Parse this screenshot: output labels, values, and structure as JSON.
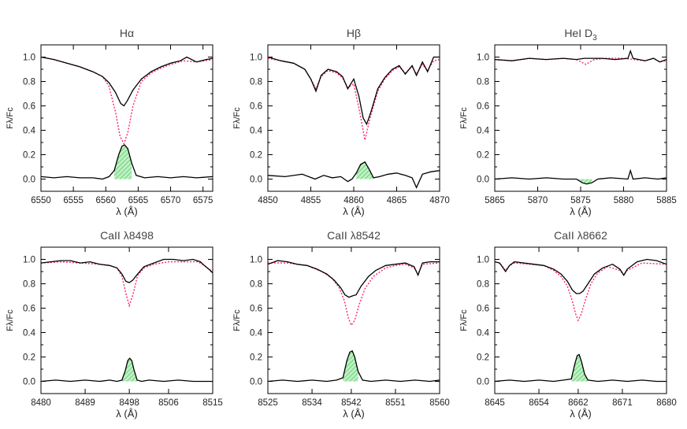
{
  "chart_data": [
    {
      "type": "line",
      "title": "Hα",
      "xlabel": "λ (Å)",
      "ylabel": "Fλ/Fc",
      "xlim": [
        6550,
        6576.5
      ],
      "ylim": [
        -0.1,
        1.1
      ],
      "xticks": [
        6550,
        6555,
        6560,
        6565,
        6570,
        6575
      ],
      "yticks": [
        0.0,
        0.2,
        0.4,
        0.6,
        0.8,
        1.0
      ],
      "line_center": 6562.8,
      "series": [
        {
          "role": "observed",
          "x": [
            6550,
            6552,
            6554,
            6556,
            6558,
            6559.5,
            6560.5,
            6561.5,
            6562.3,
            6562.8,
            6563.3,
            6564.2,
            6565.5,
            6567,
            6568.5,
            6570,
            6571.5,
            6572.5,
            6574,
            6575.5,
            6576.5
          ],
          "y": [
            1.0,
            0.98,
            0.95,
            0.92,
            0.88,
            0.84,
            0.79,
            0.71,
            0.62,
            0.6,
            0.64,
            0.73,
            0.82,
            0.88,
            0.92,
            0.95,
            0.97,
            1.0,
            0.96,
            0.98,
            0.99
          ]
        },
        {
          "role": "synthetic",
          "x": [
            6550,
            6552,
            6554,
            6556,
            6558,
            6559.5,
            6560.5,
            6561.5,
            6562.2,
            6562.8,
            6563.4,
            6564.2,
            6565.5,
            6567,
            6568.5,
            6570,
            6572,
            6574,
            6576.5
          ],
          "y": [
            1.0,
            0.98,
            0.95,
            0.92,
            0.88,
            0.84,
            0.76,
            0.55,
            0.35,
            0.29,
            0.38,
            0.6,
            0.8,
            0.87,
            0.91,
            0.94,
            0.97,
            0.96,
            0.98
          ]
        },
        {
          "role": "subtracted",
          "x": [
            6550,
            6552,
            6554,
            6556,
            6558,
            6559.5,
            6560.5,
            6561.3,
            6562.0,
            6562.5,
            6562.9,
            6563.4,
            6564.0,
            6564.7,
            6566,
            6568,
            6570,
            6572,
            6574,
            6576.5
          ],
          "y": [
            0.02,
            0.01,
            0.02,
            0.01,
            0.01,
            0.0,
            0.02,
            0.07,
            0.2,
            0.27,
            0.28,
            0.25,
            0.13,
            0.03,
            0.01,
            0.02,
            0.01,
            0.02,
            0.01,
            0.02
          ]
        }
      ]
    },
    {
      "type": "line",
      "title": "Hβ",
      "xlabel": "λ (Å)",
      "ylabel": "Fλ/Fc",
      "xlim": [
        4850,
        4870
      ],
      "ylim": [
        -0.1,
        1.1
      ],
      "xticks": [
        4850,
        4855,
        4860,
        4865,
        4870
      ],
      "yticks": [
        0.0,
        0.2,
        0.4,
        0.6,
        0.8,
        1.0
      ],
      "line_center": 4861.3,
      "series": [
        {
          "role": "observed",
          "x": [
            4850,
            4851.5,
            4853,
            4854.3,
            4855,
            4855.6,
            4856.2,
            4857,
            4858,
            4858.7,
            4859.3,
            4860,
            4860.6,
            4861.1,
            4861.5,
            4862,
            4862.8,
            4863.6,
            4864.5,
            4865.3,
            4866,
            4866.8,
            4867.3,
            4868,
            4868.6,
            4869.3,
            4870
          ],
          "y": [
            1.0,
            0.97,
            0.95,
            0.9,
            0.82,
            0.72,
            0.85,
            0.9,
            0.88,
            0.84,
            0.74,
            0.82,
            0.68,
            0.5,
            0.45,
            0.55,
            0.74,
            0.83,
            0.9,
            0.93,
            0.86,
            0.93,
            0.85,
            0.96,
            0.88,
            1.0,
            1.0
          ]
        },
        {
          "role": "synthetic",
          "x": [
            4850,
            4851.5,
            4853,
            4854.3,
            4855,
            4855.6,
            4856.2,
            4857,
            4858,
            4858.7,
            4859.3,
            4860,
            4860.7,
            4861.3,
            4861.9,
            4862.8,
            4863.6,
            4864.5,
            4865.3,
            4866,
            4866.8,
            4867.3,
            4868,
            4868.6,
            4869.3,
            4870
          ],
          "y": [
            0.99,
            0.97,
            0.95,
            0.9,
            0.82,
            0.74,
            0.84,
            0.89,
            0.87,
            0.83,
            0.75,
            0.78,
            0.55,
            0.32,
            0.5,
            0.72,
            0.82,
            0.89,
            0.92,
            0.87,
            0.92,
            0.86,
            0.94,
            0.89,
            0.97,
            0.98
          ]
        },
        {
          "role": "subtracted",
          "x": [
            4850,
            4852,
            4854,
            4855.5,
            4856.5,
            4857.5,
            4858.5,
            4859.3,
            4859.8,
            4860.3,
            4860.8,
            4861.3,
            4861.8,
            4862.3,
            4863,
            4864,
            4865,
            4866,
            4866.8,
            4867.3,
            4868,
            4869,
            4870
          ],
          "y": [
            0.03,
            0.02,
            0.04,
            0.0,
            0.03,
            0.01,
            0.02,
            -0.02,
            0.0,
            0.05,
            0.12,
            0.14,
            0.08,
            0.01,
            0.02,
            0.04,
            0.05,
            0.03,
            0.01,
            -0.07,
            0.04,
            0.06,
            0.07
          ]
        }
      ]
    },
    {
      "type": "line",
      "title": "HeI D",
      "title_subscript": "3",
      "xlabel": "λ (Å)",
      "ylabel": "Fλ/Fc",
      "xlim": [
        5865,
        5885
      ],
      "ylim": [
        -0.1,
        1.1
      ],
      "xticks": [
        5865,
        5870,
        5875,
        5880,
        5885
      ],
      "yticks": [
        0.0,
        0.2,
        0.4,
        0.6,
        0.8,
        1.0
      ],
      "line_center": 5875.7,
      "series": [
        {
          "role": "observed",
          "x": [
            5865,
            5867,
            5869,
            5871,
            5873,
            5874.5,
            5875.4,
            5876.2,
            5877.5,
            5879,
            5880.5,
            5880.8,
            5881.1,
            5882.5,
            5883.5,
            5884.2,
            5885
          ],
          "y": [
            0.98,
            0.97,
            0.99,
            0.98,
            0.99,
            0.98,
            0.99,
            0.99,
            0.99,
            0.98,
            0.99,
            1.05,
            0.99,
            0.97,
            0.99,
            0.96,
            0.98
          ]
        },
        {
          "role": "synthetic",
          "x": [
            5865,
            5867,
            5869,
            5871,
            5873,
            5874.5,
            5875.6,
            5876.6,
            5878,
            5880,
            5882.5,
            5883.5,
            5884.2,
            5885
          ],
          "y": [
            0.98,
            0.97,
            0.99,
            0.98,
            0.99,
            0.98,
            0.94,
            0.98,
            0.99,
            0.99,
            0.97,
            0.99,
            0.96,
            0.97
          ]
        },
        {
          "role": "subtracted",
          "x": [
            5865,
            5867,
            5869,
            5871,
            5873,
            5874.5,
            5875.2,
            5875.7,
            5876.3,
            5877,
            5878.5,
            5880.5,
            5880.8,
            5881.1,
            5882.5,
            5884,
            5885
          ],
          "y": [
            0.0,
            0.01,
            0.0,
            0.01,
            0.0,
            0.0,
            -0.03,
            -0.04,
            -0.03,
            0.0,
            0.01,
            0.0,
            0.07,
            0.0,
            0.01,
            0.0,
            0.01
          ]
        }
      ]
    },
    {
      "type": "line",
      "title": "CaII λ8498",
      "xlabel": "λ (Å)",
      "ylabel": "Fλ/Fc",
      "xlim": [
        8480,
        8515
      ],
      "ylim": [
        -0.1,
        1.1
      ],
      "xticks": [
        8480,
        8489,
        8498,
        8506,
        8515
      ],
      "yticks": [
        0.0,
        0.2,
        0.4,
        0.6,
        0.8,
        1.0
      ],
      "line_center": 8498.0,
      "series": [
        {
          "role": "observed",
          "x": [
            8480,
            8482,
            8484,
            8486,
            8488,
            8490,
            8492,
            8494,
            8495.5,
            8496.5,
            8497.3,
            8498,
            8498.7,
            8499.7,
            8501,
            8503,
            8505,
            8507,
            8509,
            8511,
            8512.5,
            8513.3,
            8514.2,
            8515
          ],
          "y": [
            0.97,
            0.98,
            0.99,
            0.99,
            0.97,
            0.98,
            0.96,
            0.95,
            0.93,
            0.88,
            0.82,
            0.81,
            0.83,
            0.88,
            0.94,
            0.97,
            1.0,
            1.0,
            0.99,
            1.0,
            0.98,
            0.95,
            0.92,
            0.89
          ]
        },
        {
          "role": "synthetic",
          "x": [
            8480,
            8484,
            8488,
            8492,
            8494,
            8495.5,
            8496.5,
            8497.3,
            8498,
            8498.8,
            8499.7,
            8501,
            8503,
            8506,
            8509,
            8512,
            8513.3,
            8514.2,
            8515
          ],
          "y": [
            0.97,
            0.98,
            0.97,
            0.96,
            0.95,
            0.93,
            0.86,
            0.72,
            0.62,
            0.72,
            0.87,
            0.93,
            0.96,
            0.98,
            0.98,
            0.98,
            0.95,
            0.92,
            0.9
          ]
        },
        {
          "role": "subtracted",
          "x": [
            8480,
            8483,
            8486,
            8489,
            8492,
            8494,
            8495.5,
            8496.5,
            8497.2,
            8497.7,
            8498.1,
            8498.5,
            8499,
            8499.6,
            8500.5,
            8502,
            8505,
            8508,
            8511,
            8515
          ],
          "y": [
            0.0,
            0.01,
            0.0,
            0.01,
            0.0,
            0.01,
            0.0,
            0.01,
            0.09,
            0.17,
            0.19,
            0.17,
            0.09,
            0.01,
            0.0,
            0.01,
            0.0,
            0.01,
            0.0,
            0.0
          ]
        }
      ]
    },
    {
      "type": "line",
      "title": "CaII λ8542",
      "xlabel": "λ (Å)",
      "ylabel": "Fλ/Fc",
      "xlim": [
        8525,
        8560
      ],
      "ylim": [
        -0.1,
        1.1
      ],
      "xticks": [
        8525,
        8534,
        8542,
        8551,
        8560
      ],
      "yticks": [
        0.0,
        0.2,
        0.4,
        0.6,
        0.8,
        1.0
      ],
      "line_center": 8542.1,
      "series": [
        {
          "role": "observed",
          "x": [
            8525,
            8527,
            8529,
            8531,
            8533,
            8535,
            8537,
            8538.5,
            8539.8,
            8540.7,
            8541.5,
            8542.2,
            8543,
            8544,
            8545.5,
            8547,
            8549,
            8551,
            8553,
            8554.8,
            8555.6,
            8556.5,
            8558,
            8560
          ],
          "y": [
            0.96,
            0.99,
            0.98,
            0.96,
            0.95,
            0.92,
            0.88,
            0.83,
            0.77,
            0.71,
            0.69,
            0.7,
            0.71,
            0.78,
            0.86,
            0.91,
            0.95,
            0.96,
            0.97,
            0.94,
            0.87,
            0.97,
            0.98,
            0.98
          ]
        },
        {
          "role": "synthetic",
          "x": [
            8525,
            8529,
            8533,
            8536,
            8538,
            8539.5,
            8540.6,
            8541.4,
            8542,
            8542.7,
            8543.6,
            8544.8,
            8546.5,
            8549,
            8551,
            8553,
            8554.8,
            8555.6,
            8556.5,
            8560
          ],
          "y": [
            0.97,
            0.97,
            0.95,
            0.9,
            0.85,
            0.77,
            0.66,
            0.52,
            0.46,
            0.5,
            0.63,
            0.76,
            0.86,
            0.93,
            0.95,
            0.96,
            0.93,
            0.88,
            0.96,
            0.97
          ]
        },
        {
          "role": "subtracted",
          "x": [
            8525,
            8528,
            8531,
            8534,
            8537,
            8539,
            8540.3,
            8541.1,
            8541.7,
            8542.2,
            8542.7,
            8543.4,
            8544.3,
            8546,
            8549,
            8552,
            8555,
            8558,
            8560
          ],
          "y": [
            0.0,
            0.01,
            0.0,
            0.01,
            0.0,
            0.01,
            0.03,
            0.17,
            0.24,
            0.25,
            0.2,
            0.08,
            0.01,
            0.0,
            0.01,
            0.0,
            0.01,
            0.0,
            0.01
          ]
        }
      ]
    },
    {
      "type": "line",
      "title": "CaII λ8662",
      "xlabel": "λ (Å)",
      "ylabel": "Fλ/Fc",
      "xlim": [
        8645,
        8680
      ],
      "ylim": [
        -0.1,
        1.1
      ],
      "xticks": [
        8645,
        8654,
        8662,
        8671,
        8680
      ],
      "yticks": [
        0.0,
        0.2,
        0.4,
        0.6,
        0.8,
        1.0
      ],
      "line_center": 8662.1,
      "series": [
        {
          "role": "observed",
          "x": [
            8645,
            8646,
            8647.2,
            8648,
            8649,
            8651,
            8653,
            8655,
            8657,
            8658.5,
            8659.8,
            8660.8,
            8661.6,
            8662.3,
            8663,
            8664,
            8665.3,
            8667,
            8669,
            8670.5,
            8671.3,
            8672,
            8674,
            8676,
            8678,
            8680
          ],
          "y": [
            0.98,
            0.97,
            0.9,
            0.95,
            0.98,
            0.97,
            0.96,
            0.95,
            0.92,
            0.88,
            0.82,
            0.75,
            0.72,
            0.72,
            0.74,
            0.8,
            0.88,
            0.93,
            0.96,
            0.92,
            0.87,
            0.92,
            0.98,
            1.0,
            0.99,
            0.96
          ]
        },
        {
          "role": "synthetic",
          "x": [
            8645,
            8646,
            8647.2,
            8648,
            8649,
            8652,
            8655,
            8657,
            8658.5,
            8659.8,
            8660.8,
            8661.5,
            8662,
            8662.6,
            8663.5,
            8664.6,
            8666,
            8668,
            8670.5,
            8671.3,
            8672,
            8675,
            8680
          ],
          "y": [
            0.98,
            0.97,
            0.91,
            0.95,
            0.97,
            0.96,
            0.95,
            0.91,
            0.86,
            0.78,
            0.66,
            0.55,
            0.5,
            0.55,
            0.67,
            0.8,
            0.89,
            0.94,
            0.91,
            0.87,
            0.91,
            0.97,
            0.96
          ]
        },
        {
          "role": "subtracted",
          "x": [
            8645,
            8648,
            8651,
            8654,
            8657,
            8659,
            8660.6,
            8661.3,
            8661.8,
            8662.2,
            8662.7,
            8663.3,
            8664,
            8666,
            8669,
            8672,
            8675,
            8678,
            8680
          ],
          "y": [
            0.0,
            0.01,
            0.0,
            0.01,
            0.0,
            0.01,
            0.02,
            0.14,
            0.21,
            0.22,
            0.16,
            0.06,
            0.01,
            0.0,
            0.01,
            0.0,
            0.01,
            0.0,
            0.0
          ]
        }
      ]
    }
  ],
  "colors": {
    "observed": "#000000",
    "synthetic": "#ff2277",
    "fill": "#55cc66",
    "axis": "#000000"
  }
}
